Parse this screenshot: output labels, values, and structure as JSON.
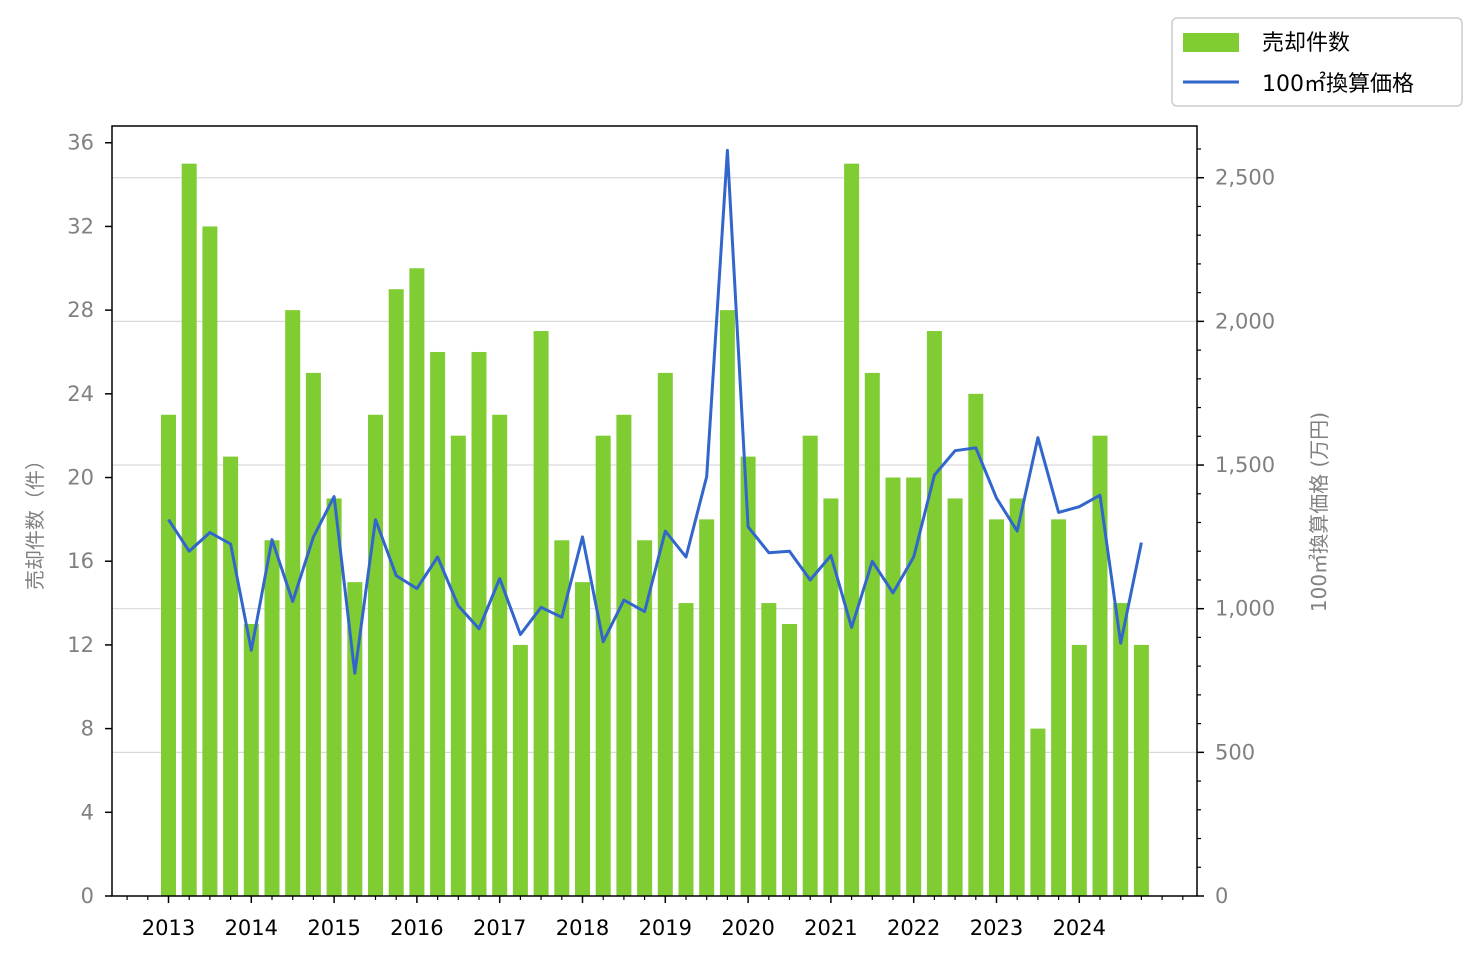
{
  "chart_data": {
    "type": "bar+line",
    "title": "",
    "x": [
      "2013Q1",
      "2013Q2",
      "2013Q3",
      "2013Q4",
      "2014Q1",
      "2014Q2",
      "2014Q3",
      "2014Q4",
      "2015Q1",
      "2015Q2",
      "2015Q3",
      "2015Q4",
      "2016Q1",
      "2016Q2",
      "2016Q3",
      "2016Q4",
      "2017Q1",
      "2017Q2",
      "2017Q3",
      "2017Q4",
      "2018Q1",
      "2018Q2",
      "2018Q3",
      "2018Q4",
      "2019Q1",
      "2019Q2",
      "2019Q3",
      "2019Q4",
      "2020Q1",
      "2020Q2",
      "2020Q3",
      "2020Q4",
      "2021Q1",
      "2021Q2",
      "2021Q3",
      "2021Q4",
      "2022Q1",
      "2022Q2",
      "2022Q3",
      "2022Q4",
      "2023Q1",
      "2023Q2",
      "2023Q3",
      "2023Q4",
      "2024Q1",
      "2024Q2",
      "2024Q3",
      "2024Q4"
    ],
    "x_tick_labels": [
      "2013",
      "2014",
      "2015",
      "2016",
      "2017",
      "2018",
      "2019",
      "2020",
      "2021",
      "2022",
      "2023",
      "2024"
    ],
    "series": [
      {
        "name": "売却件数",
        "type": "bar",
        "axis": "left",
        "color": "#7fcc33",
        "values": [
          23,
          35,
          32,
          21,
          13,
          17,
          28,
          25,
          19,
          15,
          23,
          29,
          30,
          26,
          22,
          26,
          23,
          12,
          27,
          17,
          15,
          22,
          23,
          17,
          25,
          14,
          18,
          28,
          21,
          14,
          13,
          22,
          19,
          35,
          25,
          20,
          20,
          27,
          19,
          24,
          18,
          19,
          8,
          18,
          12,
          22,
          14,
          12
        ]
      },
      {
        "name": "100㎡換算価格",
        "type": "line",
        "axis": "right",
        "color": "#3366cc",
        "values": [
          1310,
          1200,
          1265,
          1225,
          855,
          1240,
          1025,
          1250,
          1390,
          775,
          1310,
          1115,
          1070,
          1180,
          1010,
          930,
          1105,
          910,
          1005,
          970,
          1250,
          885,
          1030,
          990,
          1270,
          1180,
          1460,
          2595,
          1285,
          1195,
          1200,
          1100,
          1185,
          935,
          1165,
          1055,
          1180,
          1465,
          1550,
          1560,
          1385,
          1270,
          1595,
          1335,
          1355,
          1395,
          880,
          1230
        ]
      }
    ],
    "y_left": {
      "label": "売却件数（件）",
      "lim": [
        0,
        36.8
      ],
      "ticks": [
        0,
        4,
        8,
        12,
        16,
        20,
        24,
        28,
        32,
        36
      ]
    },
    "y_right": {
      "label": "100㎡換算価格 (万円)",
      "lim": [
        0,
        2680
      ],
      "ticks": [
        0,
        500,
        1000,
        1500,
        2000,
        2500
      ],
      "tick_labels": [
        "0",
        "500",
        "1,000",
        "1,500",
        "2,000",
        "2,500"
      ]
    },
    "grid": "horizontal (right axis)",
    "legend_position": "top-right, outside plot"
  }
}
